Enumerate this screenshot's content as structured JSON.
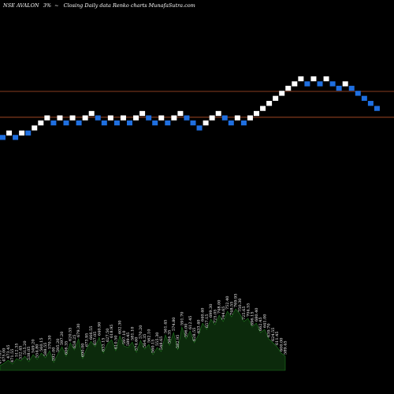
{
  "header": {
    "ticker": "NSE AVALON",
    "change": "3%",
    "arrow": "~",
    "description": "Closing Daily data  Renko  charts MunafaSutra.com"
  },
  "colors": {
    "background": "#000000",
    "up_brick": "#ffffff",
    "down_brick": "#1f6fe0",
    "reference_line": "#b5502a",
    "volume_fill": "#0c2a0c",
    "volume_edge": "#1f7a1f"
  },
  "chart_data": [
    {
      "type": "renko",
      "title": "",
      "xlabel": "",
      "ylabel": "",
      "ylim": [
        36,
        0
      ],
      "grid": false,
      "reference_lines": [
        14.5,
        18.6
      ],
      "bricks": [
        {
          "dir": "down",
          "level": 21.8
        },
        {
          "dir": "up",
          "level": 21.1
        },
        {
          "dir": "down",
          "level": 21.8
        },
        {
          "dir": "up",
          "level": 21.1
        },
        {
          "dir": "down",
          "level": 21.1
        },
        {
          "dir": "up",
          "level": 20.3
        },
        {
          "dir": "up",
          "level": 19.5
        },
        {
          "dir": "up",
          "level": 18.7
        },
        {
          "dir": "down",
          "level": 19.5
        },
        {
          "dir": "up",
          "level": 18.7
        },
        {
          "dir": "down",
          "level": 19.5
        },
        {
          "dir": "up",
          "level": 18.7
        },
        {
          "dir": "down",
          "level": 19.5
        },
        {
          "dir": "up",
          "level": 18.7
        },
        {
          "dir": "up",
          "level": 18.0
        },
        {
          "dir": "down",
          "level": 18.7
        },
        {
          "dir": "down",
          "level": 19.5
        },
        {
          "dir": "up",
          "level": 18.7
        },
        {
          "dir": "down",
          "level": 19.5
        },
        {
          "dir": "up",
          "level": 18.7
        },
        {
          "dir": "down",
          "level": 19.5
        },
        {
          "dir": "up",
          "level": 18.7
        },
        {
          "dir": "up",
          "level": 18.0
        },
        {
          "dir": "down",
          "level": 18.7
        },
        {
          "dir": "down",
          "level": 19.5
        },
        {
          "dir": "up",
          "level": 18.7
        },
        {
          "dir": "down",
          "level": 19.5
        },
        {
          "dir": "up",
          "level": 18.7
        },
        {
          "dir": "up",
          "level": 18.0
        },
        {
          "dir": "down",
          "level": 18.7
        },
        {
          "dir": "down",
          "level": 19.5
        },
        {
          "dir": "down",
          "level": 20.3
        },
        {
          "dir": "up",
          "level": 19.5
        },
        {
          "dir": "up",
          "level": 18.7
        },
        {
          "dir": "up",
          "level": 18.0
        },
        {
          "dir": "down",
          "level": 18.7
        },
        {
          "dir": "down",
          "level": 19.5
        },
        {
          "dir": "up",
          "level": 18.7
        },
        {
          "dir": "down",
          "level": 19.5
        },
        {
          "dir": "up",
          "level": 18.7
        },
        {
          "dir": "up",
          "level": 18.0
        },
        {
          "dir": "up",
          "level": 17.2
        },
        {
          "dir": "up",
          "level": 16.4
        },
        {
          "dir": "up",
          "level": 15.6
        },
        {
          "dir": "up",
          "level": 14.8
        },
        {
          "dir": "up",
          "level": 14.0
        },
        {
          "dir": "up",
          "level": 13.3
        },
        {
          "dir": "up",
          "level": 12.5
        },
        {
          "dir": "down",
          "level": 13.3
        },
        {
          "dir": "up",
          "level": 12.5
        },
        {
          "dir": "down",
          "level": 13.3
        },
        {
          "dir": "up",
          "level": 12.5
        },
        {
          "dir": "down",
          "level": 13.3
        },
        {
          "dir": "down",
          "level": 14.0
        },
        {
          "dir": "up",
          "level": 13.3
        },
        {
          "dir": "down",
          "level": 14.0
        },
        {
          "dir": "down",
          "level": 14.8
        },
        {
          "dir": "down",
          "level": 15.6
        },
        {
          "dir": "down",
          "level": 16.4
        },
        {
          "dir": "down",
          "level": 17.2
        }
      ]
    },
    {
      "type": "area",
      "title": "",
      "xlabel": "",
      "ylabel": "",
      "ylim": [
        0,
        85
      ],
      "values": [
        6,
        9,
        13,
        8,
        15,
        12,
        18,
        11,
        20,
        14,
        22,
        16,
        25,
        10,
        21,
        30,
        18,
        35,
        26,
        40,
        15,
        28,
        37,
        30,
        42,
        22,
        34,
        39,
        25,
        44,
        31,
        29,
        36,
        23,
        38,
        27,
        33,
        20,
        29,
        24,
        45,
        32,
        48,
        26,
        55,
        40,
        50,
        35,
        45,
        60,
        52,
        65,
        58,
        70,
        62,
        75,
        68,
        78,
        72,
        62,
        66,
        55,
        60,
        48,
        52,
        40,
        35,
        30,
        22,
        18
      ],
      "labels": [
        "473.65",
        "475.00",
        "473.45",
        "471.55",
        "512.35",
        "532.45",
        "515.20",
        "538.05",
        "549.20",
        "554.80",
        "560.15",
        "588.55",
        "570.30",
        "592.00",
        "595.20",
        "597.20",
        "606.35",
        "620.55",
        "658.25",
        "679.30",
        "690.00",
        "673.95",
        "666.55",
        "657.05",
        "640.90",
        "633.15",
        "627.50",
        "618.95",
        "610.50",
        "602.30",
        "597.10",
        "589.45",
        "581.10",
        "574.60",
        "570.20",
        "564.35",
        "562.10",
        "560.15",
        "555.30",
        "548.65",
        "561.45",
        "566.35",
        "574.80",
        "582.95",
        "591.70",
        "596.00",
        "612.45",
        "628.55",
        "633.40",
        "640.40",
        "657.15",
        "699.30",
        "725.05",
        "748.00",
        "744.65",
        "752.40",
        "748.55",
        "769.95",
        "750.30",
        "725.65",
        "704.55",
        "696.15",
        "680.40",
        "662.45",
        "641.00",
        "639.70",
        "624.55",
        "611.45",
        "600.00",
        "589.45"
      ]
    }
  ]
}
